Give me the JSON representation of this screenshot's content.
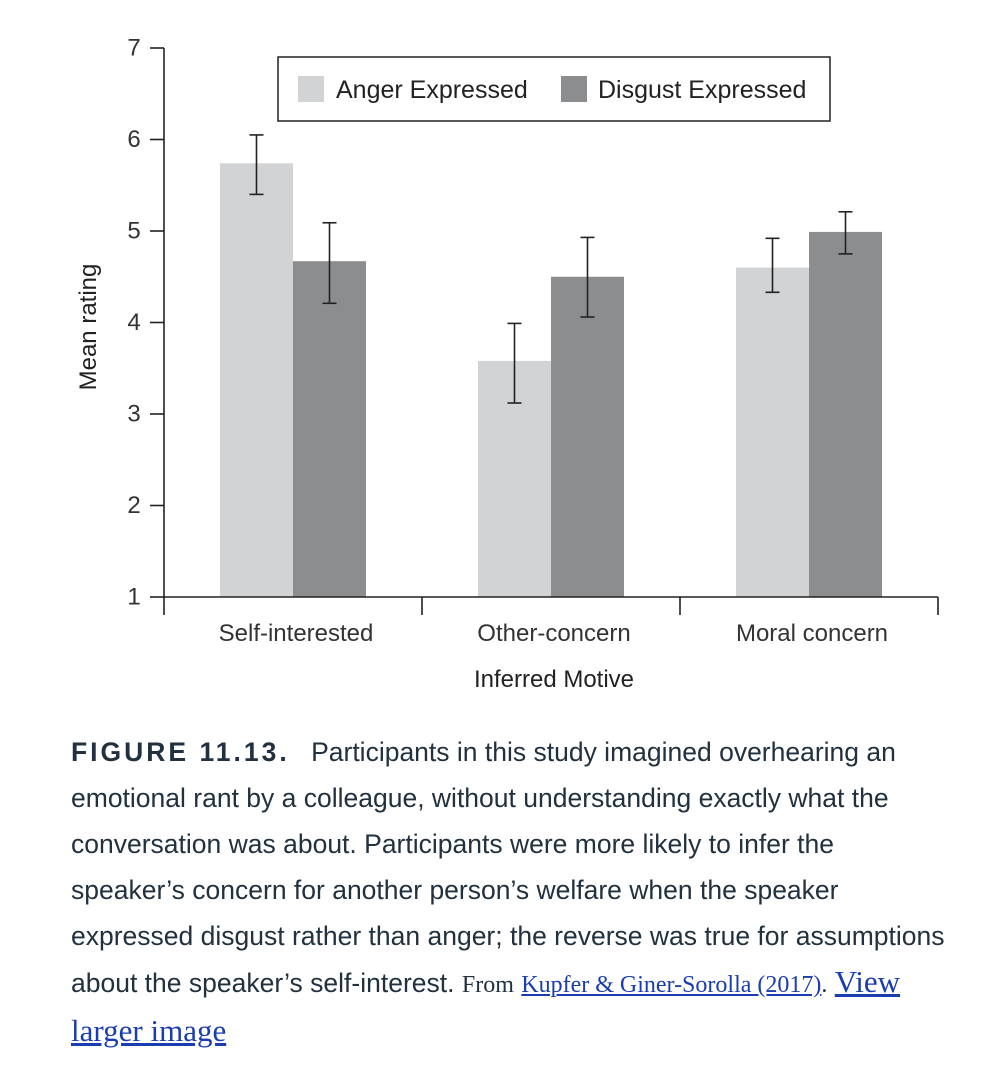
{
  "chart_data": {
    "type": "bar",
    "title": "",
    "xlabel": "Inferred Motive",
    "ylabel": "Mean rating",
    "ylim": [
      1,
      7
    ],
    "yticks": [
      "1",
      "2",
      "3",
      "4",
      "5",
      "6",
      "7"
    ],
    "categories": [
      "Self-interested",
      "Other-concern",
      "Moral concern"
    ],
    "series": [
      {
        "name": "Anger Expressed",
        "color": "#d2d3d5",
        "values": [
          5.74,
          3.58,
          4.6
        ],
        "error_low": [
          5.4,
          3.12,
          4.33
        ],
        "error_high": [
          6.05,
          3.99,
          4.92
        ]
      },
      {
        "name": "Disgust Expressed",
        "color": "#8c8d8f",
        "values": [
          4.67,
          4.5,
          4.99
        ],
        "error_low": [
          4.21,
          4.06,
          4.75
        ],
        "error_high": [
          5.09,
          4.93,
          5.21
        ]
      }
    ],
    "legend_position": "top-right",
    "grid": false
  },
  "caption": {
    "label": "FIGURE 11.13.",
    "text": "Participants in this study imagined overhearing an emotional rant by a colleague, without understanding exactly what the conversation was about. Participants were more likely to infer the speaker’s concern for another person’s welfare when the speaker expressed disgust rather than anger; the reverse was true for assumptions about the speaker’s self-interest.",
    "source_prefix": "From",
    "source_link": "Kupfer & Giner-Sorolla (2017)",
    "source_suffix": ".",
    "larger_link": "View larger image"
  }
}
